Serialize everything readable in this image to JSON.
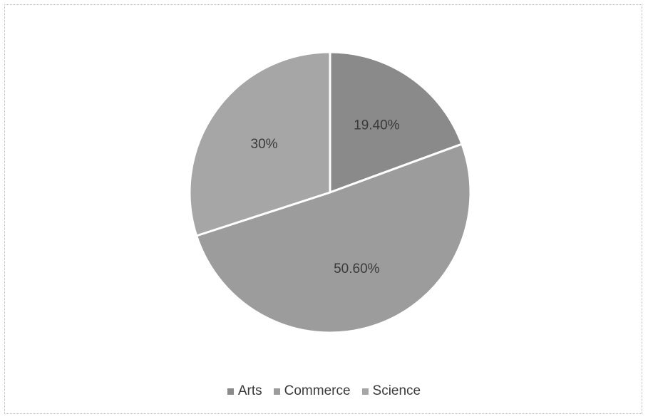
{
  "chart_data": {
    "type": "pie",
    "title": "",
    "slices": [
      {
        "name": "Arts",
        "label": "19.40%",
        "value": 19.4,
        "color": "#8a8a8a"
      },
      {
        "name": "Commerce",
        "label": "50.60%",
        "value": 50.6,
        "color": "#9c9c9c"
      },
      {
        "name": "Science",
        "label": "30%",
        "value": 30,
        "color": "#a6a6a6"
      }
    ],
    "start_angle_deg": 0,
    "direction": "clockwise",
    "legend_position": "bottom"
  },
  "colors": {
    "label_text": "#3a3a3a",
    "slice_border": "#ffffff"
  }
}
